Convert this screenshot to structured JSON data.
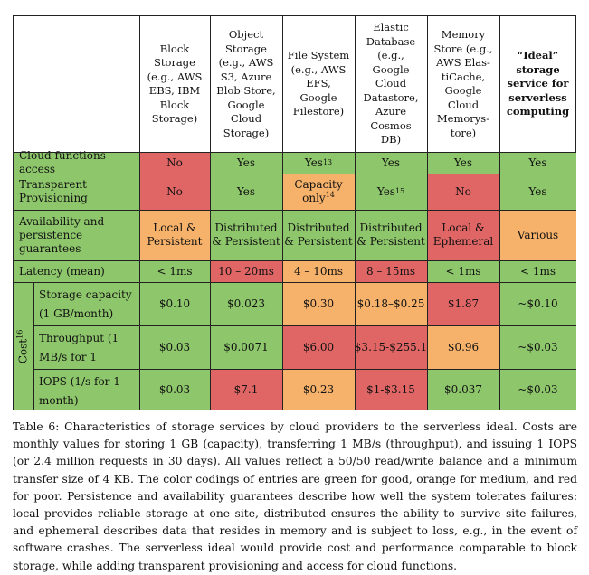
{
  "headers": {
    "block": "Block Storage (e.g., AWS EBS, IBM Block Storage)",
    "object": "Object Storage (e.g., AWS S3, Azure Blob Store, Google Cloud Storage)",
    "file": "File System (e.g., AWS EFS, Google Filestore)",
    "db": "Elastic Database (e.g., Google Cloud Datastore, Azure Cosmos DB)",
    "memory": "Memory Store (e.g., AWS Elas-tiCache, Google Cloud Memorys-tore)",
    "ideal": "“Ideal” storage service for serverless computing"
  },
  "rows": {
    "cloud_functions": {
      "label": "Cloud functions access",
      "block": "No",
      "object": "Yes",
      "file": "Yes",
      "file_sup": "13",
      "db": "Yes",
      "memory": "Yes",
      "ideal": "Yes"
    },
    "transparent": {
      "label": "Transparent Provisioning",
      "block": "No",
      "object": "Yes",
      "file": "Capacity only",
      "file_sup": "14",
      "db": "Yes",
      "db_sup": "15",
      "memory": "No",
      "ideal": "Yes"
    },
    "availability": {
      "label": "Availability and persistence guarantees",
      "block": "Local & Persistent",
      "object": "Distributed & Persistent",
      "file": "Distributed & Persistent",
      "db": "Distributed & Persistent",
      "memory": "Local & Ephemeral",
      "ideal": "Various"
    },
    "latency": {
      "label": "Latency (mean)",
      "block": "< 1ms",
      "object": "10 – 20ms",
      "file": "4 – 10ms",
      "db": "8 – 15ms",
      "memory": "< 1ms",
      "ideal": "< 1ms"
    }
  },
  "cost": {
    "label": "Cost",
    "label_sup": "16",
    "capacity": {
      "label": "Storage capacity (1 GB/month)",
      "block": "$0.10",
      "object": "$0.023",
      "file": "$0.30",
      "db": "$0.18–$0.25",
      "memory": "$1.87",
      "ideal": "~$0.10"
    },
    "throughput": {
      "label": "Throughput (1 MB/s for 1 month)",
      "block": "$0.03",
      "object": "$0.0071",
      "file": "$6.00",
      "db": "$3.15-$255.1",
      "memory": "$0.96",
      "ideal": "~$0.03"
    },
    "iops": {
      "label": "IOPS (1/s for 1 month)",
      "block": "$0.03",
      "object": "$7.1",
      "file": "$0.23",
      "db": "$1-$3.15",
      "memory": "$0.037",
      "ideal": "~$0.03"
    }
  },
  "caption": "Table 6: Characteristics of storage services by cloud providers to the serverless ideal. Costs are monthly values for storing 1 GB (capacity), transferring 1 MB/s (throughput), and issuing 1 IOPS (or 2.4 million requests in 30 days). All values reflect a 50/50 read/write balance and a minimum transfer size of 4 KB. The color codings of entries are green for good, orange for medium, and red for poor. Persistence and availability guarantees describe how well the system tolerates failures: local provides reliable storage at one site, distributed ensures the ability to survive site failures, and ephemeral describes data that resides in memory and is subject to loss, e.g., in the event of software crashes. The serverless ideal would provide cost and performance comparable to block storage, while adding transparent provisioning and access for cloud functions."
}
